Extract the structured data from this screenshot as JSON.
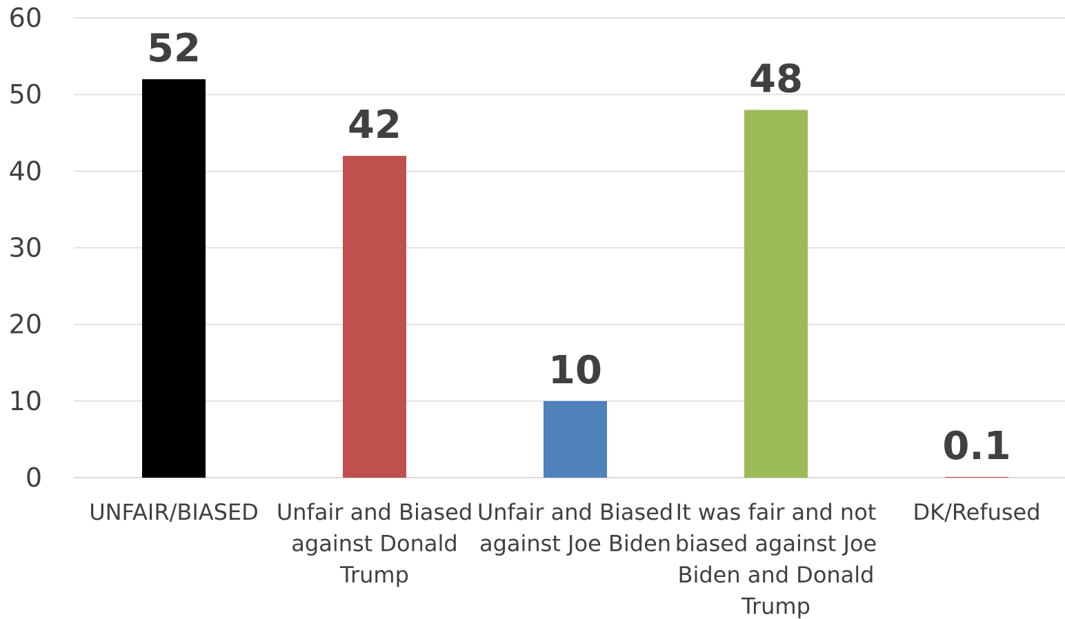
{
  "chart_data": {
    "type": "bar",
    "categories": [
      [
        "UNFAIR/BIASED"
      ],
      [
        "Unfair and Biased",
        "against Donald",
        "Trump"
      ],
      [
        "Unfair and Biased",
        "against Joe Biden"
      ],
      [
        "It was fair and not",
        "biased against Joe",
        "Biden and Donald",
        "Trump"
      ],
      [
        "DK/Refused"
      ]
    ],
    "values": [
      52,
      42,
      10,
      48,
      0.1
    ],
    "data_labels": [
      "52",
      "42",
      "10",
      "48",
      "0.1"
    ],
    "colors": [
      "#000000",
      "#c0504d",
      "#4f81bd",
      "#9bbb59",
      "#c0504d"
    ],
    "ylim": [
      0,
      60
    ],
    "yticks": [
      0,
      10,
      20,
      30,
      40,
      50,
      60
    ],
    "grid": true,
    "legend": "none"
  }
}
